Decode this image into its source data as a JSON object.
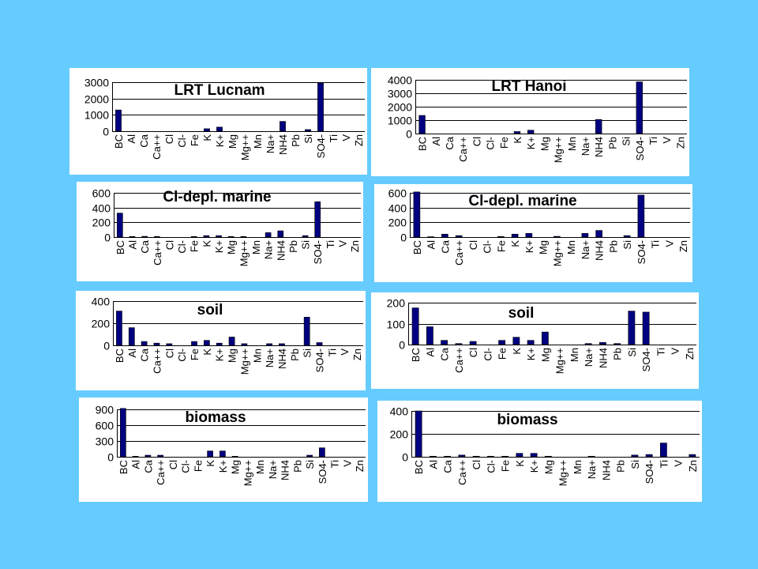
{
  "background_color": "#66ccff",
  "bar_color": "#000080",
  "categories": [
    "BC",
    "Al",
    "Ca",
    "Ca++",
    "Cl",
    "Cl-",
    "Fe",
    "K",
    "K+",
    "Mg",
    "Mg++",
    "Mn",
    "Na+",
    "NH4",
    "Pb",
    "Si",
    "SO4-",
    "Ti",
    "V",
    "Zn"
  ],
  "chart_data": [
    {
      "type": "bar",
      "title": "LRT Lucnam",
      "ylim": [
        0,
        3000
      ],
      "yticks": [
        0,
        1000,
        2000,
        3000
      ],
      "values": [
        1300,
        0,
        0,
        0,
        0,
        0,
        0,
        150,
        250,
        0,
        0,
        0,
        0,
        600,
        0,
        100,
        2950,
        0,
        0,
        0
      ]
    },
    {
      "type": "bar",
      "title": "LRT Hanoi",
      "ylim": [
        0,
        4000
      ],
      "yticks": [
        0,
        1000,
        2000,
        3000,
        4000
      ],
      "values": [
        1350,
        0,
        0,
        0,
        0,
        0,
        0,
        150,
        250,
        0,
        0,
        0,
        0,
        1050,
        0,
        0,
        3850,
        0,
        0,
        0
      ]
    },
    {
      "type": "bar",
      "title": "Cl-depl. marine",
      "ylim": [
        0,
        600
      ],
      "yticks": [
        0,
        200,
        400,
        600
      ],
      "values": [
        325,
        8,
        10,
        8,
        0,
        0,
        8,
        20,
        20,
        8,
        8,
        0,
        60,
        85,
        0,
        20,
        480,
        0,
        0,
        0
      ]
    },
    {
      "type": "bar",
      "title": "Cl-depl. marine",
      "ylim": [
        0,
        600
      ],
      "yticks": [
        0,
        200,
        400,
        600
      ],
      "values": [
        620,
        5,
        40,
        20,
        0,
        0,
        8,
        40,
        50,
        0,
        10,
        0,
        50,
        90,
        0,
        20,
        570,
        0,
        0,
        0
      ]
    },
    {
      "type": "bar",
      "title": "soil",
      "ylim": [
        0,
        400
      ],
      "yticks": [
        0,
        200,
        400
      ],
      "values": [
        310,
        160,
        35,
        20,
        15,
        0,
        35,
        45,
        20,
        75,
        15,
        0,
        15,
        15,
        0,
        255,
        25,
        0,
        0,
        0
      ]
    },
    {
      "type": "bar",
      "title": "soil",
      "ylim": [
        0,
        200
      ],
      "yticks": [
        0,
        100,
        200
      ],
      "values": [
        175,
        85,
        20,
        5,
        15,
        0,
        20,
        35,
        20,
        60,
        0,
        0,
        5,
        10,
        5,
        160,
        155,
        0,
        0,
        0
      ]
    },
    {
      "type": "bar",
      "title": "biomass",
      "ylim": [
        0,
        900
      ],
      "yticks": [
        0,
        300,
        600,
        900
      ],
      "values": [
        920,
        10,
        30,
        30,
        0,
        0,
        0,
        110,
        110,
        10,
        0,
        0,
        0,
        0,
        0,
        30,
        170,
        0,
        0,
        0
      ]
    },
    {
      "type": "bar",
      "title": "biomass",
      "ylim": [
        0,
        400
      ],
      "yticks": [
        0,
        200,
        400
      ],
      "values": [
        400,
        5,
        5,
        15,
        5,
        5,
        5,
        30,
        30,
        5,
        0,
        0,
        5,
        0,
        0,
        15,
        20,
        120,
        0,
        20
      ]
    }
  ]
}
